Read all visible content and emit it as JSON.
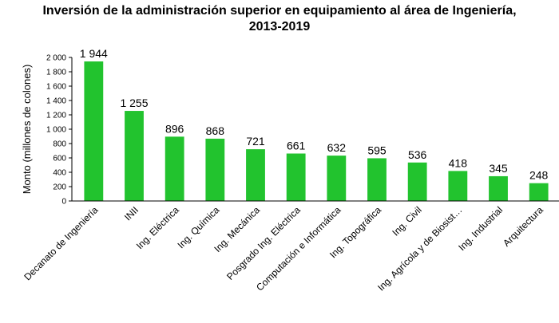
{
  "chart_data": {
    "type": "bar",
    "title_line1": "Inversión de la administración superior en equipamiento al área de Ingeniería,",
    "title_line2": "2013-2019",
    "xlabel": "",
    "ylabel": "Monto (millones de colones)",
    "ylim": [
      0,
      2000
    ],
    "yticks": [
      0,
      200,
      400,
      600,
      800,
      1000,
      1200,
      1400,
      1600,
      1800,
      2000
    ],
    "ytick_labels": [
      "0",
      "200",
      "400",
      "600",
      "800",
      "1 000",
      "1 200",
      "1 400",
      "1 600",
      "1 800",
      "2 000"
    ],
    "grid": false,
    "legend": "none",
    "bar_color": "#22c32e",
    "categories": [
      "Decanato de Ingeniería",
      "INII",
      "Ing. Eléctrica",
      "Ing. Química",
      "Ing. Mecánica",
      "Posgrado Ing. Eléctrica",
      "Computación e Informática",
      "Ing. Topográfica",
      "Ing. Civil",
      "Ing. Agrícola y de Biosist…",
      "Ing. Industrial",
      "Arquitectura"
    ],
    "values": [
      1944,
      1255,
      896,
      868,
      721,
      661,
      632,
      595,
      536,
      418,
      345,
      248
    ],
    "value_labels": [
      "1 944",
      "1 255",
      "896",
      "868",
      "721",
      "661",
      "632",
      "595",
      "536",
      "418",
      "345",
      "248"
    ]
  }
}
